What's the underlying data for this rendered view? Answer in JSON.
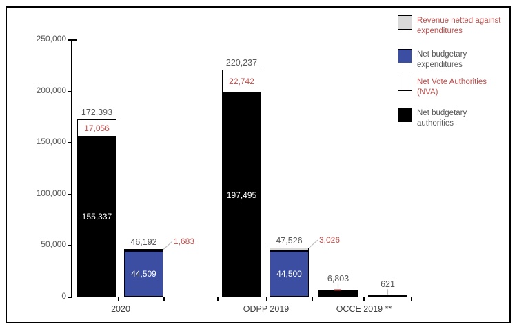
{
  "chart_data": {
    "type": "stacked-bar",
    "categories": [
      "2020",
      "ODPP 2019",
      "OCCE 2019 **"
    ],
    "y_axis": {
      "min": 0,
      "max": 250000,
      "tick_interval": 50000,
      "tick_labels_top_down": [
        "250,000",
        "200,000",
        "150,000",
        "100,000",
        "50,000",
        "0"
      ]
    },
    "grid": "off",
    "legend_position": "top-right",
    "series_colors": {
      "net_budgetary_authorities": "#000000",
      "net_vote_authorities": "#ffffff",
      "net_budgetary_expenditures": "#3b4ea1",
      "revenue_netted": "#d9d9d9"
    },
    "label_colors": {
      "outside_total": "#595959",
      "red": "#c0504d",
      "inside_on_dark": "#ffffff",
      "leader_line": "#bfbfbf"
    },
    "legend": {
      "items": [
        {
          "key": "revenue_netted",
          "label_lines": [
            "Revenue netted against",
            "expenditures"
          ],
          "swatch_color": "#d9d9d9",
          "text_color": "#c0504d"
        },
        {
          "key": "net_budgetary_expenditures",
          "label_lines": [
            "Net budgetary",
            "expenditures"
          ],
          "swatch_color": "#3b4ea1",
          "text_color": "#595959"
        },
        {
          "key": "net_vote_authorities",
          "label_lines": [
            "Net Vote Authorities",
            "(NVA)"
          ],
          "swatch_color": "#ffffff",
          "text_color": "#c0504d"
        },
        {
          "key": "net_budgetary_authorities",
          "label_lines": [
            "Net budgetary",
            "authorities"
          ],
          "swatch_color": "#000000",
          "text_color": "#595959"
        }
      ]
    },
    "bars": [
      {
        "category": "2020",
        "total": 172393,
        "total_label": "172,393",
        "segments": [
          {
            "key": "net_budgetary_authorities",
            "value": 155337,
            "label": "155,337",
            "label_style": "inside-white"
          },
          {
            "key": "net_vote_authorities",
            "value": 17056,
            "label": "17,056",
            "label_style": "inside-red"
          }
        ]
      },
      {
        "category": "2020",
        "total": 46192,
        "total_label": "46,192",
        "segments": [
          {
            "key": "net_budgetary_expenditures",
            "value": 44509,
            "label": "44,509",
            "label_style": "inside-white"
          },
          {
            "key": "revenue_netted",
            "value": 1683,
            "label": "1,683",
            "label_style": "outside-red-diagonal"
          }
        ]
      },
      {
        "category": "ODPP 2019",
        "total": 220237,
        "total_label": "220,237",
        "segments": [
          {
            "key": "net_budgetary_authorities",
            "value": 197495,
            "label": "197,495",
            "label_style": "inside-white"
          },
          {
            "key": "net_vote_authorities",
            "value": 22742,
            "label": "22,742",
            "label_style": "inside-red"
          }
        ]
      },
      {
        "category": "ODPP 2019",
        "total": 47526,
        "total_label": "47,526",
        "segments": [
          {
            "key": "net_budgetary_expenditures",
            "value": 44500,
            "label": "44,500",
            "label_style": "inside-white"
          },
          {
            "key": "revenue_netted",
            "value": 3026,
            "label": "3,026",
            "label_style": "outside-red-diagonal"
          }
        ]
      },
      {
        "category": "OCCE 2019 **",
        "total": 6803,
        "total_label": "6,803",
        "leader": "vertical",
        "red_tick": true,
        "segments": [
          {
            "key": "net_budgetary_authorities",
            "value": 6803
          }
        ]
      },
      {
        "category": "OCCE 2019 **",
        "total": 621,
        "total_label": "621",
        "leader": "vertical",
        "segments": [
          {
            "key": "net_budgetary_expenditures",
            "value": 621
          }
        ]
      }
    ]
  }
}
